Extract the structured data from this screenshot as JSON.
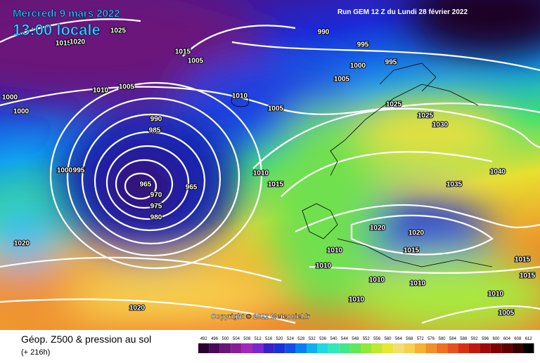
{
  "header": {
    "date": "Mercredi 9 mars 2022",
    "time": "13:00 locale",
    "run": "Run GEM 12 Z du Lundi 28 février 2022"
  },
  "isobar_labels": [
    "1025",
    "1015",
    "1020",
    "1015",
    "1005",
    "990",
    "995",
    "1000",
    "995",
    "1005",
    "1010",
    "1005",
    "1010",
    "1000",
    "1000",
    "1005",
    "990",
    "985",
    "1025",
    "1025",
    "1030",
    "1000",
    "995",
    "1010",
    "1015",
    "965",
    "970",
    "965",
    "975",
    "980",
    "1040",
    "1035",
    "1020",
    "1020",
    "1020",
    "1015",
    "1010",
    "1010",
    "1015",
    "1015",
    "1010",
    "1010",
    "1010",
    "1010",
    "1020",
    "1005"
  ],
  "copyright": "Copyright © 2022 Meteociel.fr",
  "footer": {
    "title": "Géop. Z500 & pression au sol",
    "lead": "(+ 216h)"
  },
  "legend": {
    "values": [
      492,
      496,
      500,
      504,
      508,
      512,
      516,
      520,
      524,
      528,
      532,
      536,
      540,
      544,
      548,
      552,
      556,
      560,
      564,
      568,
      572,
      576,
      580,
      584,
      588,
      592,
      596,
      600,
      604,
      608,
      612
    ],
    "colors": [
      "#2a0030",
      "#4a0a58",
      "#6a1478",
      "#8a1e98",
      "#a228b8",
      "#7a28d0",
      "#3a20c8",
      "#1a30d8",
      "#1050e8",
      "#0a80f0",
      "#10b0f0",
      "#20d8e0",
      "#30e8b8",
      "#40e888",
      "#60e858",
      "#90e838",
      "#c0e830",
      "#e8e830",
      "#f0e070",
      "#f8d050",
      "#f8b030",
      "#f09028",
      "#f07020",
      "#e85020",
      "#d83018",
      "#c01810",
      "#a00808",
      "#800000",
      "#600000",
      "#380000",
      "#000000"
    ]
  }
}
